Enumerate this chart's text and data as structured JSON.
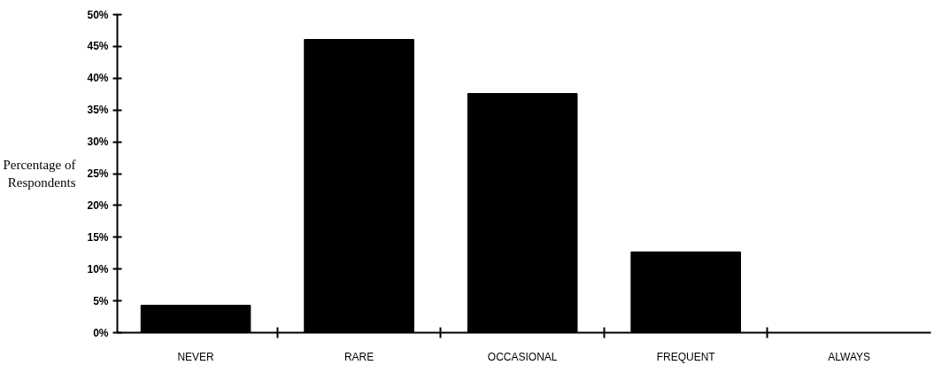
{
  "chart_data": {
    "type": "bar",
    "ylabel": "Percentage of Respondents",
    "categories": [
      "NEVER",
      "RARE",
      "OCCASIONAL",
      "FREQUENT",
      "ALWAYS"
    ],
    "values": [
      4.3,
      46.1,
      37.6,
      12.7,
      0
    ],
    "color": "#000000",
    "ylim": [
      0,
      50
    ],
    "yticks": [
      {
        "value": 0,
        "label": "0%"
      },
      {
        "value": 5,
        "label": "5%"
      },
      {
        "value": 10,
        "label": "10%"
      },
      {
        "value": 15,
        "label": "15%"
      },
      {
        "value": 20,
        "label": "20%"
      },
      {
        "value": 25,
        "label": "25%"
      },
      {
        "value": 30,
        "label": "30%"
      },
      {
        "value": 35,
        "label": "35%"
      },
      {
        "value": 40,
        "label": "40%"
      },
      {
        "value": 45,
        "label": "45%"
      },
      {
        "value": 50,
        "label": "50%"
      }
    ],
    "grid": false
  }
}
